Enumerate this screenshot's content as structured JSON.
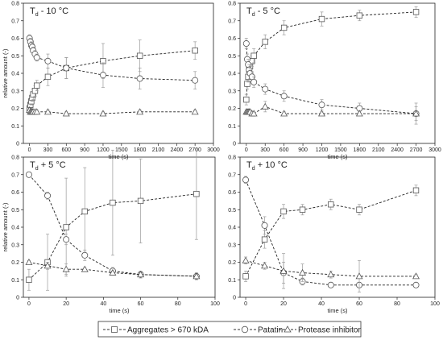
{
  "chart_data": [
    {
      "type": "line",
      "title": "T",
      "title_sub": "d",
      "title_rest": " - 10 °C",
      "xlabel": "time (s)",
      "ylabel": "relative amount (-)",
      "xlim": [
        -100,
        3000
      ],
      "ylim": [
        0,
        0.8
      ],
      "xticks": [
        0,
        300,
        600,
        900,
        1200,
        1500,
        1800,
        2100,
        2400,
        2700,
        3000
      ],
      "yticks": [
        0,
        0.1,
        0.2,
        0.3,
        0.4,
        0.5,
        0.6,
        0.7,
        0.8
      ],
      "series": [
        {
          "name": "Aggregates > 670 kDA",
          "marker": "square",
          "x": [
            0,
            15,
            30,
            45,
            60,
            90,
            120,
            300,
            600,
            1200,
            1800,
            2700
          ],
          "y": [
            0.2,
            0.22,
            0.24,
            0.26,
            0.28,
            0.3,
            0.33,
            0.38,
            0.43,
            0.47,
            0.5,
            0.53
          ],
          "err": [
            0.02,
            0.02,
            0.02,
            0.02,
            0.03,
            0.03,
            0.03,
            0.05,
            0.06,
            0.1,
            0.09,
            0.05
          ]
        },
        {
          "name": "Patatin",
          "marker": "circle",
          "x": [
            0,
            15,
            30,
            45,
            60,
            90,
            120,
            300,
            600,
            1200,
            1800,
            2700
          ],
          "y": [
            0.6,
            0.58,
            0.56,
            0.55,
            0.53,
            0.51,
            0.49,
            0.47,
            0.43,
            0.39,
            0.37,
            0.36
          ],
          "err": [
            0.02,
            0.02,
            0.02,
            0.02,
            0.02,
            0.02,
            0.02,
            0.04,
            0.06,
            0.07,
            0.06,
            0.05
          ]
        },
        {
          "name": "Protease inhibitor",
          "marker": "triangle",
          "x": [
            0,
            15,
            30,
            45,
            60,
            90,
            120,
            300,
            600,
            1200,
            1800,
            2700
          ],
          "y": [
            0.19,
            0.18,
            0.18,
            0.18,
            0.18,
            0.18,
            0.18,
            0.18,
            0.17,
            0.17,
            0.18,
            0.18
          ],
          "err": [
            0.01,
            0.01,
            0.01,
            0.01,
            0.01,
            0.01,
            0.01,
            0.01,
            0.01,
            0.01,
            0.01,
            0.01
          ]
        }
      ]
    },
    {
      "type": "line",
      "title": "T",
      "title_sub": "d",
      "title_rest": " - 5 °C",
      "xlabel": "time (s)",
      "ylabel": "",
      "xlim": [
        -100,
        3000
      ],
      "ylim": [
        0,
        0.8
      ],
      "xticks": [
        0,
        300,
        600,
        900,
        1200,
        1500,
        1800,
        2100,
        2400,
        2700,
        3000
      ],
      "yticks": [
        0,
        0.1,
        0.2,
        0.3,
        0.4,
        0.5,
        0.6,
        0.7,
        0.8
      ],
      "series": [
        {
          "name": "Aggregates > 670 kDA",
          "marker": "square",
          "x": [
            0,
            15,
            30,
            45,
            60,
            90,
            120,
            300,
            600,
            1200,
            1800,
            2700
          ],
          "y": [
            0.25,
            0.34,
            0.38,
            0.42,
            0.44,
            0.47,
            0.5,
            0.58,
            0.66,
            0.71,
            0.73,
            0.75
          ],
          "err": [
            0.03,
            0.03,
            0.03,
            0.03,
            0.03,
            0.03,
            0.04,
            0.04,
            0.04,
            0.04,
            0.03,
            0.03
          ]
        },
        {
          "name": "Patatin",
          "marker": "circle",
          "x": [
            0,
            15,
            30,
            45,
            60,
            90,
            120,
            300,
            600,
            1200,
            1800,
            2700
          ],
          "y": [
            0.57,
            0.48,
            0.45,
            0.42,
            0.4,
            0.38,
            0.35,
            0.31,
            0.27,
            0.22,
            0.2,
            0.17
          ],
          "err": [
            0.03,
            0.03,
            0.03,
            0.03,
            0.03,
            0.03,
            0.03,
            0.03,
            0.03,
            0.03,
            0.03,
            0.04
          ]
        },
        {
          "name": "Protease inhibitor",
          "marker": "triangle",
          "x": [
            0,
            15,
            30,
            45,
            60,
            90,
            120,
            300,
            600,
            1200,
            1800,
            2700
          ],
          "y": [
            0.18,
            0.18,
            0.18,
            0.18,
            0.18,
            0.17,
            0.17,
            0.21,
            0.17,
            0.17,
            0.17,
            0.17
          ],
          "err": [
            0.01,
            0.01,
            0.01,
            0.01,
            0.01,
            0.01,
            0.01,
            0.03,
            0.01,
            0.01,
            0.01,
            0.06
          ]
        }
      ]
    },
    {
      "type": "line",
      "title": "T",
      "title_sub": "d",
      "title_rest": " + 5 °C",
      "xlabel": "time (s)",
      "ylabel": "relative amount (-)",
      "xlim": [
        -3,
        100
      ],
      "ylim": [
        0,
        0.8
      ],
      "xticks": [
        0,
        20,
        40,
        60,
        80,
        100
      ],
      "yticks": [
        0,
        0.1,
        0.2,
        0.3,
        0.4,
        0.5,
        0.6,
        0.7,
        0.8
      ],
      "series": [
        {
          "name": "Aggregates > 670 kDA",
          "marker": "square",
          "x": [
            0,
            10,
            20,
            30,
            45,
            60,
            90
          ],
          "y": [
            0.1,
            0.2,
            0.4,
            0.49,
            0.54,
            0.55,
            0.59
          ],
          "err": [
            0.06,
            0.16,
            0.28,
            0.25,
            0.3,
            0.24,
            0.26
          ]
        },
        {
          "name": "Patatin",
          "marker": "circle",
          "x": [
            0,
            10,
            20,
            30,
            45,
            60,
            90
          ],
          "y": [
            0.7,
            0.58,
            0.33,
            0.24,
            0.15,
            0.13,
            0.12
          ],
          "err": [
            0.01,
            0.02,
            0.03,
            0.03,
            0.02,
            0.02,
            0.02
          ]
        },
        {
          "name": "Protease inhibitor",
          "marker": "triangle",
          "x": [
            0,
            10,
            20,
            30,
            45,
            60,
            90
          ],
          "y": [
            0.2,
            0.18,
            0.16,
            0.16,
            0.14,
            0.13,
            0.12
          ],
          "err": [
            0.01,
            0.02,
            0.03,
            0.01,
            0.01,
            0.01,
            0.01
          ]
        }
      ]
    },
    {
      "type": "line",
      "title": "T",
      "title_sub": "d",
      "title_rest": " + 10 °C",
      "xlabel": "time (s)",
      "ylabel": "",
      "xlim": [
        -3,
        100
      ],
      "ylim": [
        0,
        0.8
      ],
      "xticks": [
        0,
        20,
        40,
        60,
        80,
        100
      ],
      "yticks": [
        0,
        0.1,
        0.2,
        0.3,
        0.4,
        0.5,
        0.6,
        0.7,
        0.8
      ],
      "series": [
        {
          "name": "Aggregates > 670 kDA",
          "marker": "square",
          "x": [
            0,
            10,
            20,
            30,
            45,
            60,
            90
          ],
          "y": [
            0.12,
            0.33,
            0.49,
            0.5,
            0.53,
            0.5,
            0.61
          ],
          "err": [
            0.03,
            0.05,
            0.04,
            0.03,
            0.03,
            0.03,
            0.03
          ]
        },
        {
          "name": "Patatin",
          "marker": "circle",
          "x": [
            0,
            10,
            20,
            30,
            45,
            60,
            90
          ],
          "y": [
            0.67,
            0.41,
            0.14,
            0.09,
            0.07,
            0.07,
            0.07
          ],
          "err": [
            0.02,
            0.05,
            0.06,
            0.02,
            0.01,
            0.01,
            0.01
          ]
        },
        {
          "name": "Protease inhibitor",
          "marker": "triangle",
          "x": [
            0,
            10,
            20,
            30,
            45,
            60,
            90
          ],
          "y": [
            0.21,
            0.18,
            0.15,
            0.14,
            0.13,
            0.12,
            0.12
          ],
          "err": [
            0.02,
            0.02,
            0.1,
            0.05,
            0.02,
            0.09,
            0.01
          ]
        }
      ]
    }
  ],
  "legend": {
    "items": [
      "Aggregates > 670 kDA",
      "Patatin",
      "Protease inhibitor"
    ],
    "placement": "bottom"
  }
}
